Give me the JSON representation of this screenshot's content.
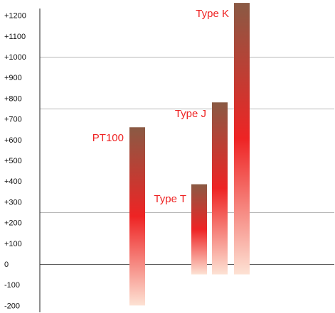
{
  "chart_data": {
    "type": "bar",
    "title": "",
    "xlabel": "",
    "ylabel": "",
    "ylim": [
      -200,
      1200
    ],
    "yticks": [
      "+1200",
      "+1100",
      "+1000",
      "+900",
      "+800",
      "+700",
      "+600",
      "+500",
      "+400",
      "+300",
      "+200",
      "+100",
      "0",
      "-100",
      "-200"
    ],
    "categories": [
      "PT100",
      "Type T",
      "Type J",
      "Type K"
    ],
    "ranges": [
      {
        "name": "PT100",
        "low": -200,
        "high": 660
      },
      {
        "name": "Type T",
        "low": -50,
        "high": 385
      },
      {
        "name": "Type J",
        "low": -50,
        "high": 780
      },
      {
        "name": "Type K",
        "low": -50,
        "high": 1260
      }
    ],
    "bar_top_color": "#8a5a44",
    "bar_mid_color": "#ee2424",
    "bar_bottom_color": "#fde2d4",
    "label_color": "#ee2222"
  }
}
